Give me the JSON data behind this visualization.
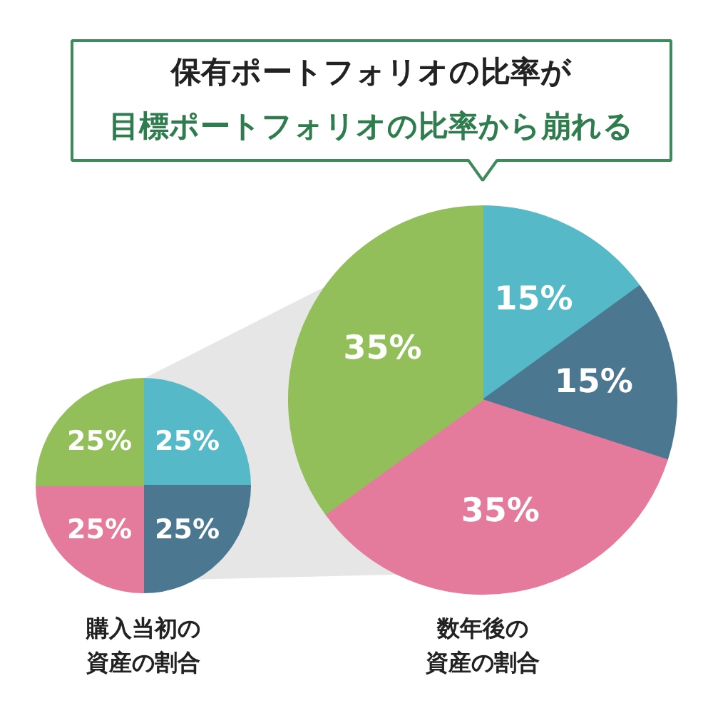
{
  "chart_data": [
    {
      "type": "pie",
      "title": "購入当初の資産の割合",
      "categories": [
        null,
        null,
        null,
        null
      ],
      "values": [
        25,
        25,
        25,
        25
      ],
      "colors": [
        "#56b9c7",
        "#4b7890",
        "#e57b9c",
        "#92bf59"
      ],
      "value_labels": [
        "25%",
        "25%",
        "25%",
        "25%"
      ]
    },
    {
      "type": "pie",
      "title": "数年後の資産の割合",
      "categories": [
        null,
        null,
        null,
        null
      ],
      "values": [
        15,
        15,
        35,
        35
      ],
      "colors": [
        "#56b9c7",
        "#4b7890",
        "#e57b9c",
        "#92bf59"
      ],
      "value_labels": [
        "15%",
        "15%",
        "35%",
        "35%"
      ],
      "annotations": [
        "保有ポートフォリオの比率が",
        "目標ポートフォリオの比率から崩れる"
      ]
    }
  ]
}
